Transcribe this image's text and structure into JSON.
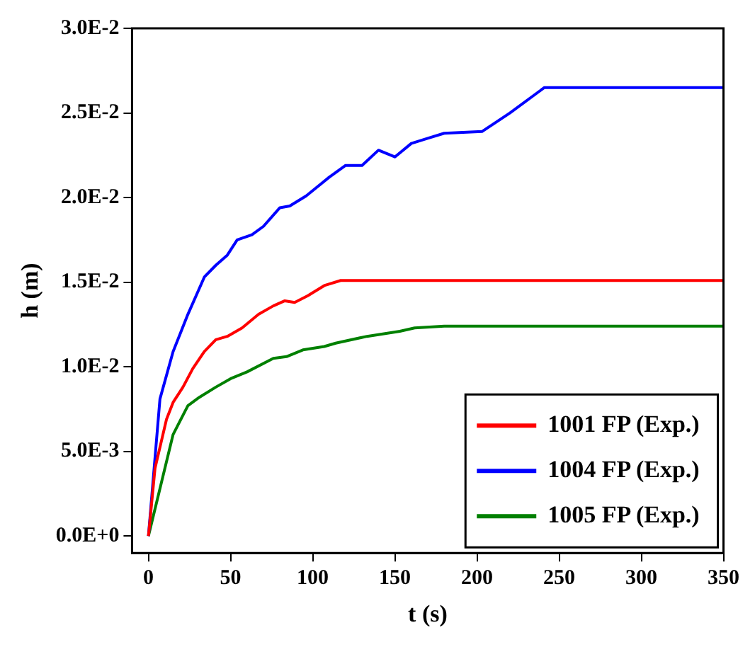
{
  "chart_data": {
    "type": "line",
    "xlabel": "t (s)",
    "ylabel": "h (m)",
    "xlim": [
      -10,
      350
    ],
    "xticks": [
      0,
      50,
      100,
      150,
      200,
      250,
      300,
      350
    ],
    "ylim": [
      -0.001,
      0.03
    ],
    "yticks": [
      {
        "value": 0,
        "label": "0.0E+0"
      },
      {
        "value": 0.005,
        "label": "5.0E-3"
      },
      {
        "value": 0.01,
        "label": "1.0E-2"
      },
      {
        "value": 0.015,
        "label": "1.5E-2"
      },
      {
        "value": 0.02,
        "label": "2.0E-2"
      },
      {
        "value": 0.025,
        "label": "2.5E-2"
      },
      {
        "value": 0.03,
        "label": "3.0E-2"
      }
    ],
    "grid": false,
    "legend": "bottom right",
    "marker": "none",
    "line_style": "solid",
    "series": [
      {
        "name": "1001 FP (Exp.)",
        "color": "#ff0000",
        "x": [
          0,
          4,
          11,
          15,
          21,
          27,
          34,
          41,
          48,
          57,
          67,
          76,
          83,
          89,
          97,
          107,
          117,
          150,
          300,
          350
        ],
        "values": [
          0,
          0.004,
          0.0069,
          0.0079,
          0.0088,
          0.0099,
          0.0109,
          0.0116,
          0.0118,
          0.0123,
          0.0131,
          0.0136,
          0.0139,
          0.0138,
          0.0142,
          0.0148,
          0.0151,
          0.0151,
          0.0151,
          0.0151
        ]
      },
      {
        "name": "1004 FP (Exp.)",
        "color": "#0000ff",
        "x": [
          0,
          7,
          15,
          24,
          34,
          41,
          48,
          54,
          63,
          70,
          80,
          86,
          96,
          110,
          120,
          130,
          140,
          150,
          160,
          170,
          180,
          203,
          220,
          241,
          350
        ],
        "values": [
          0,
          0.0081,
          0.0109,
          0.0131,
          0.0153,
          0.016,
          0.0166,
          0.0175,
          0.0178,
          0.0183,
          0.0194,
          0.0195,
          0.0201,
          0.0212,
          0.0219,
          0.0219,
          0.0228,
          0.0224,
          0.0232,
          0.0235,
          0.0238,
          0.0239,
          0.025,
          0.0265,
          0.0265
        ]
      },
      {
        "name": "1005 FP (Exp.)",
        "color": "#008000",
        "x": [
          0,
          7,
          15,
          24,
          31,
          41,
          50,
          60,
          76,
          84,
          94,
          107,
          114,
          133,
          153,
          162,
          180,
          250,
          350
        ],
        "values": [
          0,
          0.0028,
          0.006,
          0.0077,
          0.0082,
          0.0088,
          0.0093,
          0.0097,
          0.0105,
          0.0106,
          0.011,
          0.0112,
          0.0114,
          0.0118,
          0.0121,
          0.0123,
          0.0124,
          0.0124,
          0.0124
        ]
      }
    ]
  }
}
